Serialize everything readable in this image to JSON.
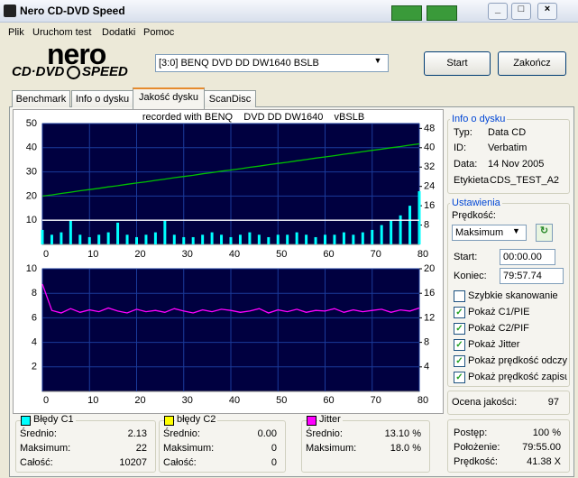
{
  "window": {
    "title": "Nero CD-DVD Speed"
  },
  "menu": [
    "Plik",
    "Uruchom test",
    "Dodatki",
    "Pomoc"
  ],
  "logo": {
    "brand": "nero",
    "product_left": "CD·DVD",
    "product_right": "SPEED"
  },
  "drive": "[3:0]   BENQ DVD DD DW1640 BSLB",
  "buttons": [
    "Start",
    "Zakończ"
  ],
  "tabs": {
    "items": [
      "Benchmark",
      "Info o dysku",
      "Jakość dysku",
      "ScanDisc"
    ],
    "active": 2
  },
  "charts": [
    {
      "type": "combo",
      "title": "recorded with BENQ    DVD DD DW1640    vBSLB",
      "background": "#000040",
      "grid": true,
      "x": [
        0,
        2,
        4,
        6,
        8,
        10,
        12,
        14,
        16,
        18,
        20,
        22,
        24,
        26,
        28,
        30,
        32,
        34,
        36,
        38,
        40,
        42,
        44,
        46,
        48,
        50,
        52,
        54,
        56,
        58,
        60,
        62,
        64,
        66,
        68,
        70,
        72,
        74,
        76,
        78,
        80
      ],
      "xlim": [
        0,
        80
      ],
      "xticks": [
        0,
        10,
        20,
        30,
        40,
        50,
        60,
        70,
        80
      ],
      "ylim": [
        0,
        50
      ],
      "yticks": [
        10,
        20,
        30,
        40,
        50
      ],
      "y2lim": [
        0,
        50
      ],
      "y2ticks": [
        8,
        16,
        24,
        32,
        40,
        48
      ],
      "series": [
        {
          "type": "bar",
          "color": "#00ffff",
          "values": [
            6,
            4,
            5,
            10,
            4,
            3,
            4,
            5,
            9,
            4,
            3,
            4,
            5,
            10,
            4,
            3,
            3,
            4,
            5,
            4,
            3,
            4,
            5,
            4,
            3,
            4,
            4,
            5,
            4,
            3,
            4,
            4,
            5,
            4,
            5,
            6,
            8,
            10,
            12,
            16,
            22
          ]
        },
        {
          "type": "line",
          "color": "#00c000",
          "axis": "y2",
          "values": [
            20,
            20.5,
            21.1,
            21.6,
            22.2,
            22.7,
            23.2,
            23.8,
            24.3,
            24.9,
            25.4,
            25.9,
            26.5,
            27,
            27.6,
            28.1,
            28.6,
            29.2,
            29.7,
            30.3,
            30.8,
            31.3,
            31.9,
            32.4,
            33,
            33.5,
            34,
            34.6,
            35.1,
            35.7,
            36.2,
            36.7,
            37.3,
            37.8,
            38.4,
            38.9,
            39.4,
            40,
            40.5,
            41.1,
            41.6
          ]
        },
        {
          "type": "line",
          "color": "#ffffff",
          "axis": "y2",
          "values": [
            10,
            10,
            10,
            10,
            10,
            10,
            10,
            10,
            10,
            10,
            10,
            10,
            10,
            10,
            10,
            10,
            10,
            10,
            10,
            10,
            10,
            10,
            10,
            10,
            10,
            10,
            10,
            10,
            10,
            10,
            10,
            10,
            10,
            10,
            10,
            10,
            10,
            10,
            10,
            10,
            10
          ]
        }
      ]
    },
    {
      "type": "combo",
      "background": "#000040",
      "grid": true,
      "x": [
        0,
        2,
        4,
        6,
        8,
        10,
        12,
        14,
        16,
        18,
        20,
        22,
        24,
        26,
        28,
        30,
        32,
        34,
        36,
        38,
        40,
        42,
        44,
        46,
        48,
        50,
        52,
        54,
        56,
        58,
        60,
        62,
        64,
        66,
        68,
        70,
        72,
        74,
        76,
        78,
        80
      ],
      "xlim": [
        0,
        80
      ],
      "xticks": [
        0,
        10,
        20,
        30,
        40,
        50,
        60,
        70,
        80
      ],
      "ylim": [
        0,
        10
      ],
      "yticks": [
        2,
        4,
        6,
        8,
        10
      ],
      "y2lim": [
        0,
        20
      ],
      "y2ticks": [
        4,
        8,
        12,
        16,
        20
      ],
      "series": [
        {
          "type": "line",
          "color": "#ff00ff",
          "axis": "y2",
          "values": [
            17.5,
            13.2,
            12.8,
            13.5,
            12.9,
            13.3,
            13,
            13.6,
            13.1,
            12.8,
            13.4,
            13,
            13.2,
            12.9,
            13.5,
            13.1,
            12.8,
            13.3,
            13,
            13.4,
            13.2,
            12.9,
            13.1,
            13.5,
            12.8,
            13.3,
            13,
            13.4,
            12.9,
            13.2,
            13.1,
            13.5,
            12.9,
            13.3,
            13,
            13.2,
            13.4,
            12.9,
            13.3,
            13.1,
            13.6
          ]
        }
      ]
    }
  ],
  "disc_info": {
    "title": "Info o dysku",
    "rows": [
      {
        "label": "Typ:",
        "value": "Data CD"
      },
      {
        "label": "ID:",
        "value": "Verbatim"
      },
      {
        "label": "Data:",
        "value": "14 Nov 2005"
      },
      {
        "label": "Etykieta",
        "value": "CDS_TEST_A2"
      }
    ]
  },
  "settings": {
    "title": "Ustawienia",
    "speed_label": "Prędkość:",
    "speed": "Maksimum",
    "start_label": "Start:",
    "start": "00:00.00",
    "end_label": "Koniec:",
    "end": "79:57.74",
    "options": [
      {
        "label": "Szybkie skanowanie",
        "checked": false
      },
      {
        "label": "Pokaż C1/PIE",
        "checked": true
      },
      {
        "label": "Pokaż C2/PIF",
        "checked": true
      },
      {
        "label": "Pokaż Jitter",
        "checked": true
      },
      {
        "label": "Pokaż prędkość odczy",
        "checked": true
      },
      {
        "label": "Pokaż prędkość zapisu",
        "checked": true
      }
    ]
  },
  "quality": {
    "label": "Ocena jakości:",
    "value": 97
  },
  "progress": {
    "rows": [
      {
        "label": "Postęp:",
        "value": "100 %"
      },
      {
        "label": "Położenie:",
        "value": "79:55.00"
      },
      {
        "label": "Prędkość:",
        "value": "41.38 X"
      }
    ]
  },
  "stats": [
    {
      "name": "Błędy C1",
      "color": "#00ffff",
      "rows": [
        {
          "label": "Średnio:",
          "value": "2.13"
        },
        {
          "label": "Maksimum:",
          "value": "22"
        },
        {
          "label": "Całość:",
          "value": "10207"
        }
      ]
    },
    {
      "name": "błędy C2",
      "color": "#ffff00",
      "rows": [
        {
          "label": "Średnio:",
          "value": "0.00"
        },
        {
          "label": "Maksimum:",
          "value": "0"
        },
        {
          "label": "Całość:",
          "value": "0"
        }
      ]
    },
    {
      "name": "Jitter",
      "color": "#ff00ff",
      "rows": [
        {
          "label": "Średnio:",
          "value": "13.10 %"
        },
        {
          "label": "Maksimum:",
          "value": "18.0 %"
        }
      ]
    }
  ]
}
